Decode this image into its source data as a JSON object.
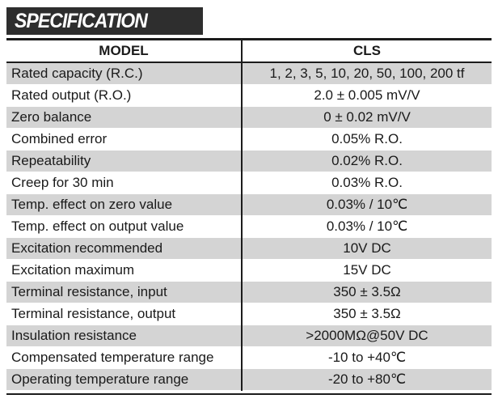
{
  "title": "SPECIFICATION",
  "table": {
    "headers": [
      "MODEL",
      "CLS"
    ],
    "rows": [
      {
        "label": "Rated capacity (R.C.)",
        "value": "1, 2, 3, 5, 10, 20, 50, 100, 200 tf"
      },
      {
        "label": "Rated output (R.O.)",
        "value": "2.0 ± 0.005 mV/V"
      },
      {
        "label": "Zero balance",
        "value": "0 ± 0.02 mV/V"
      },
      {
        "label": "Combined error",
        "value": "0.05% R.O."
      },
      {
        "label": "Repeatability",
        "value": "0.02% R.O."
      },
      {
        "label": "Creep for 30 min",
        "value": "0.03% R.O."
      },
      {
        "label": "Temp. effect on zero value",
        "value": "0.03% / 10℃"
      },
      {
        "label": "Temp. effect on output value",
        "value": "0.03% / 10℃"
      },
      {
        "label": "Excitation recommended",
        "value": "10V DC"
      },
      {
        "label": "Excitation maximum",
        "value": "15V DC"
      },
      {
        "label": "Terminal resistance, input",
        "value": "350 ± 3.5Ω"
      },
      {
        "label": "Terminal resistance, output",
        "value": "350 ± 3.5Ω"
      },
      {
        "label": "Insulation resistance",
        "value": ">2000MΩ@50V DC"
      },
      {
        "label": "Compensated temperature range",
        "value": "-10 to +40℃"
      },
      {
        "label": "Operating temperature range",
        "value": "-20 to +80℃"
      }
    ]
  },
  "colors": {
    "banner": "#2e2e2e",
    "row_shade": "#d4d4d4",
    "rule": "#1c1c1c"
  }
}
